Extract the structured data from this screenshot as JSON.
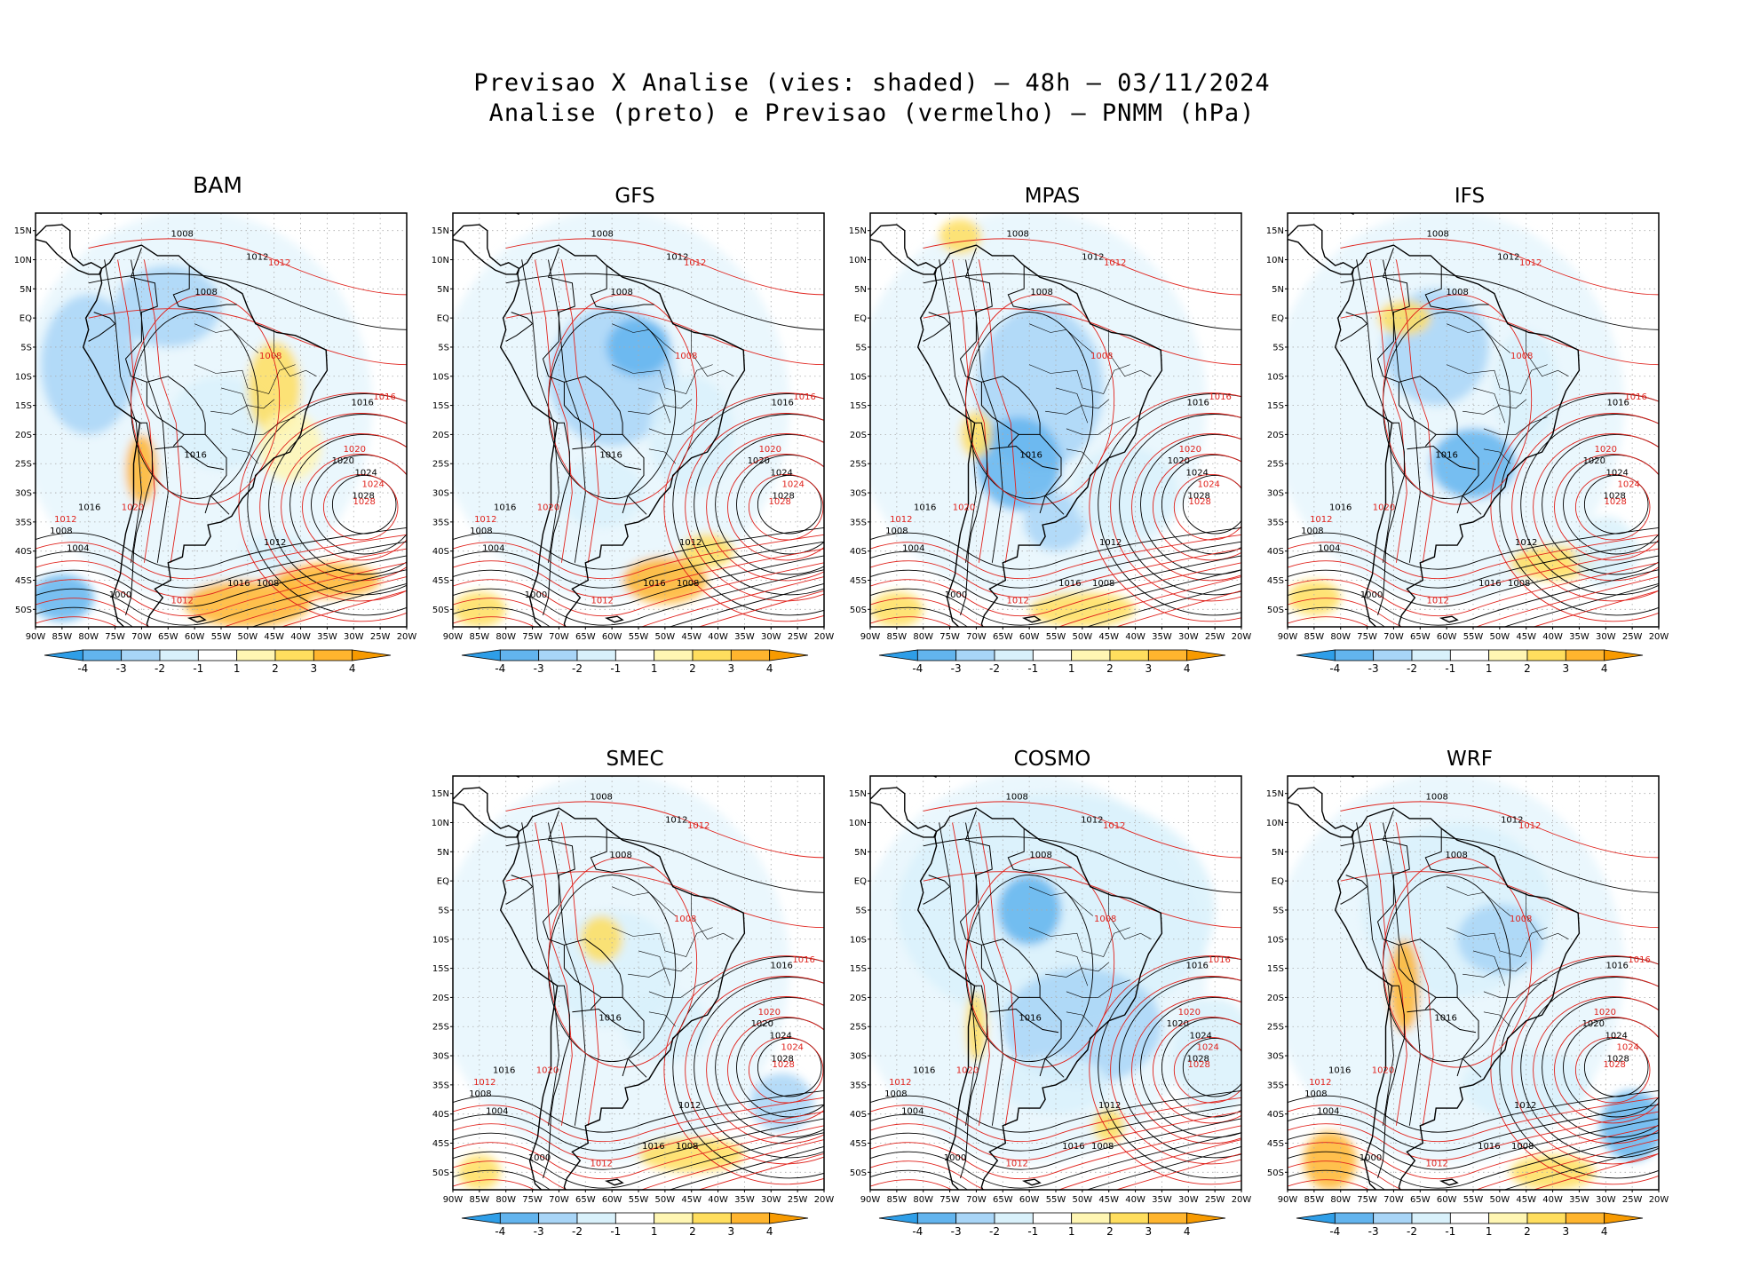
{
  "title": {
    "line1": "Previsao X Analise (vies: shaded) — 48h — 03/11/2024",
    "line2": "Analise (preto) e Previsao (vermelho) — PNMM (hPa)"
  },
  "panels": [
    {
      "name": "BAM"
    },
    {
      "name": "GFS"
    },
    {
      "name": "MPAS"
    },
    {
      "name": "IFS"
    },
    {
      "name": "SMEC"
    },
    {
      "name": "COSMO"
    },
    {
      "name": "WRF"
    }
  ],
  "axes": {
    "lat_labels": [
      "15N",
      "10N",
      "5N",
      "EQ",
      "5S",
      "10S",
      "15S",
      "20S",
      "25S",
      "30S",
      "35S",
      "40S",
      "45S",
      "50S"
    ],
    "lon_labels": [
      "90W",
      "85W",
      "80W",
      "75W",
      "70W",
      "65W",
      "60W",
      "55W",
      "50W",
      "45W",
      "40W",
      "35W",
      "30W",
      "25W",
      "20W"
    ]
  },
  "colorbar": {
    "labels": [
      "-4",
      "-3",
      "-2",
      "-1",
      "1",
      "2",
      "3",
      "4"
    ],
    "colors": [
      "#2e9ee8",
      "#62b4ee",
      "#a8d5f7",
      "#d9f1fb",
      "#ffffff",
      "#fff6b3",
      "#ffde5e",
      "#ffb52e",
      "#f79a00"
    ]
  },
  "colors": {
    "analysis_contour": "#000000",
    "forecast_contour": "#e0221c",
    "grid": "#aaaaaa"
  },
  "isobar_labels": [
    "1000",
    "1004",
    "1008",
    "1012",
    "1016",
    "1020",
    "1024",
    "1028"
  ]
}
